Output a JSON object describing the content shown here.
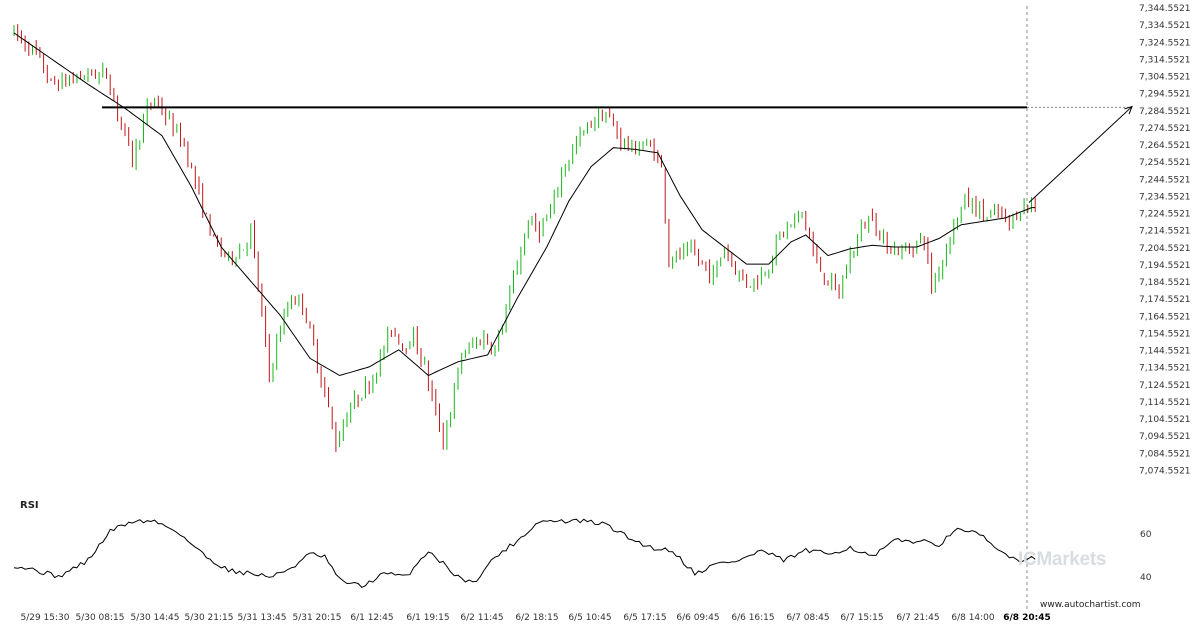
{
  "chart_data": {
    "type": "candlestick",
    "title": "",
    "price_axis": {
      "ylim": [
        7069.5521,
        7344.5521
      ],
      "ticks": [
        "7,344.5521",
        "7,334.5521",
        "7,324.5521",
        "7,314.5521",
        "7,304.5521",
        "7,294.5521",
        "7,284.5521",
        "7,274.5521",
        "7,264.5521",
        "7,254.5521",
        "7,244.5521",
        "7,234.5521",
        "7,224.5521",
        "7,214.5521",
        "7,204.5521",
        "7,194.5521",
        "7,184.5521",
        "7,174.5521",
        "7,164.5521",
        "7,154.5521",
        "7,144.5521",
        "7,134.5521",
        "7,124.5521",
        "7,114.5521",
        "7,104.5521",
        "7,094.5521",
        "7,084.5521",
        "7,074.5521"
      ]
    },
    "time_axis": {
      "ticks": [
        "5/29 15:30",
        "5/30 08:15",
        "5/30 14:45",
        "5/30 21:15",
        "5/31 13:45",
        "5/31 20:15",
        "6/1 12:45",
        "6/1 19:15",
        "6/2 11:45",
        "6/2 18:15",
        "6/5 10:45",
        "6/5 17:15",
        "6/6 09:45",
        "6/6 16:15",
        "6/7 08:45",
        "6/7 15:15",
        "6/7 21:45",
        "6/8 14:00",
        "6/8 20:45"
      ]
    },
    "anchors": [
      [
        0,
        7330
      ],
      [
        6,
        7318
      ],
      [
        10,
        7300
      ],
      [
        14,
        7302
      ],
      [
        20,
        7306
      ],
      [
        25,
        7306
      ],
      [
        28,
        7284
      ],
      [
        32,
        7256
      ],
      [
        36,
        7285
      ],
      [
        38,
        7292
      ],
      [
        42,
        7278
      ],
      [
        46,
        7265
      ],
      [
        50,
        7235
      ],
      [
        54,
        7208
      ],
      [
        58,
        7198
      ],
      [
        62,
        7205
      ],
      [
        64,
        7215
      ],
      [
        67,
        7165
      ],
      [
        69,
        7130
      ],
      [
        72,
        7158
      ],
      [
        75,
        7176
      ],
      [
        78,
        7172
      ],
      [
        80,
        7155
      ],
      [
        84,
        7120
      ],
      [
        87,
        7090
      ],
      [
        90,
        7108
      ],
      [
        93,
        7118
      ],
      [
        96,
        7125
      ],
      [
        99,
        7140
      ],
      [
        102,
        7158
      ],
      [
        105,
        7148
      ],
      [
        108,
        7152
      ],
      [
        111,
        7135
      ],
      [
        114,
        7108
      ],
      [
        116,
        7092
      ],
      [
        118,
        7110
      ],
      [
        121,
        7142
      ],
      [
        124,
        7148
      ],
      [
        127,
        7152
      ],
      [
        130,
        7145
      ],
      [
        133,
        7168
      ],
      [
        136,
        7195
      ],
      [
        139,
        7220
      ],
      [
        142,
        7215
      ],
      [
        145,
        7225
      ],
      [
        148,
        7248
      ],
      [
        151,
        7262
      ],
      [
        154,
        7272
      ],
      [
        157,
        7280
      ],
      [
        160,
        7283
      ],
      [
        162,
        7275
      ],
      [
        164,
        7268
      ],
      [
        167,
        7262
      ],
      [
        170,
        7265
      ],
      [
        173,
        7262
      ],
      [
        175,
        7250
      ],
      [
        177,
        7198
      ],
      [
        180,
        7200
      ],
      [
        183,
        7202
      ],
      [
        186,
        7195
      ],
      [
        189,
        7188
      ],
      [
        192,
        7205
      ],
      [
        195,
        7192
      ],
      [
        198,
        7184
      ],
      [
        201,
        7186
      ],
      [
        204,
        7195
      ],
      [
        207,
        7212
      ],
      [
        210,
        7218
      ],
      [
        213,
        7225
      ],
      [
        215,
        7210
      ],
      [
        217,
        7195
      ],
      [
        220,
        7185
      ],
      [
        223,
        7178
      ],
      [
        226,
        7200
      ],
      [
        229,
        7215
      ],
      [
        232,
        7225
      ],
      [
        234,
        7210
      ],
      [
        237,
        7205
      ],
      [
        240,
        7202
      ],
      [
        243,
        7206
      ],
      [
        246,
        7210
      ],
      [
        248,
        7182
      ],
      [
        251,
        7198
      ],
      [
        254,
        7218
      ],
      [
        257,
        7232
      ],
      [
        260,
        7228
      ],
      [
        263,
        7222
      ],
      [
        266,
        7225
      ],
      [
        269,
        7218
      ],
      [
        272,
        7228
      ],
      [
        275,
        7230
      ]
    ],
    "ma_anchors": [
      [
        0,
        7330
      ],
      [
        10,
        7315
      ],
      [
        20,
        7300
      ],
      [
        30,
        7286
      ],
      [
        40,
        7270
      ],
      [
        48,
        7240
      ],
      [
        56,
        7205
      ],
      [
        64,
        7185
      ],
      [
        72,
        7165
      ],
      [
        80,
        7140
      ],
      [
        88,
        7130
      ],
      [
        96,
        7135
      ],
      [
        104,
        7145
      ],
      [
        112,
        7130
      ],
      [
        120,
        7138
      ],
      [
        128,
        7142
      ],
      [
        136,
        7175
      ],
      [
        144,
        7205
      ],
      [
        150,
        7232
      ],
      [
        156,
        7252
      ],
      [
        162,
        7263
      ],
      [
        168,
        7262
      ],
      [
        174,
        7260
      ],
      [
        180,
        7235
      ],
      [
        186,
        7215
      ],
      [
        192,
        7205
      ],
      [
        198,
        7195
      ],
      [
        204,
        7195
      ],
      [
        210,
        7208
      ],
      [
        214,
        7212
      ],
      [
        220,
        7200
      ],
      [
        226,
        7204
      ],
      [
        232,
        7206
      ],
      [
        238,
        7205
      ],
      [
        244,
        7205
      ],
      [
        250,
        7210
      ],
      [
        256,
        7218
      ],
      [
        262,
        7220
      ],
      [
        268,
        7222
      ],
      [
        275,
        7228
      ]
    ],
    "resistance_level": 7286.5,
    "projection": {
      "from_price": 7231,
      "to_price": 7287
    },
    "rsi": {
      "label": "RSI",
      "ticks": [
        "60",
        "40"
      ],
      "ylim": [
        25,
        85
      ],
      "anchors": [
        [
          0,
          45
        ],
        [
          6,
          42
        ],
        [
          12,
          38
        ],
        [
          20,
          48
        ],
        [
          26,
          66
        ],
        [
          32,
          72
        ],
        [
          38,
          72
        ],
        [
          44,
          66
        ],
        [
          52,
          50
        ],
        [
          58,
          42
        ],
        [
          64,
          40
        ],
        [
          70,
          38
        ],
        [
          76,
          45
        ],
        [
          80,
          52
        ],
        [
          84,
          50
        ],
        [
          88,
          36
        ],
        [
          94,
          32
        ],
        [
          100,
          40
        ],
        [
          106,
          38
        ],
        [
          112,
          54
        ],
        [
          116,
          46
        ],
        [
          120,
          38
        ],
        [
          124,
          34
        ],
        [
          130,
          50
        ],
        [
          136,
          60
        ],
        [
          142,
          72
        ],
        [
          148,
          72
        ],
        [
          154,
          72
        ],
        [
          160,
          70
        ],
        [
          166,
          62
        ],
        [
          172,
          56
        ],
        [
          178,
          54
        ],
        [
          184,
          40
        ],
        [
          190,
          46
        ],
        [
          196,
          48
        ],
        [
          202,
          54
        ],
        [
          208,
          48
        ],
        [
          214,
          54
        ],
        [
          220,
          52
        ],
        [
          226,
          56
        ],
        [
          232,
          50
        ],
        [
          238,
          60
        ],
        [
          244,
          60
        ],
        [
          250,
          58
        ],
        [
          256,
          68
        ],
        [
          262,
          62
        ],
        [
          266,
          54
        ],
        [
          272,
          48
        ],
        [
          276,
          50
        ]
      ]
    }
  },
  "footer": {
    "url": "www.autochartist.com",
    "brand": "ICMarkets"
  }
}
